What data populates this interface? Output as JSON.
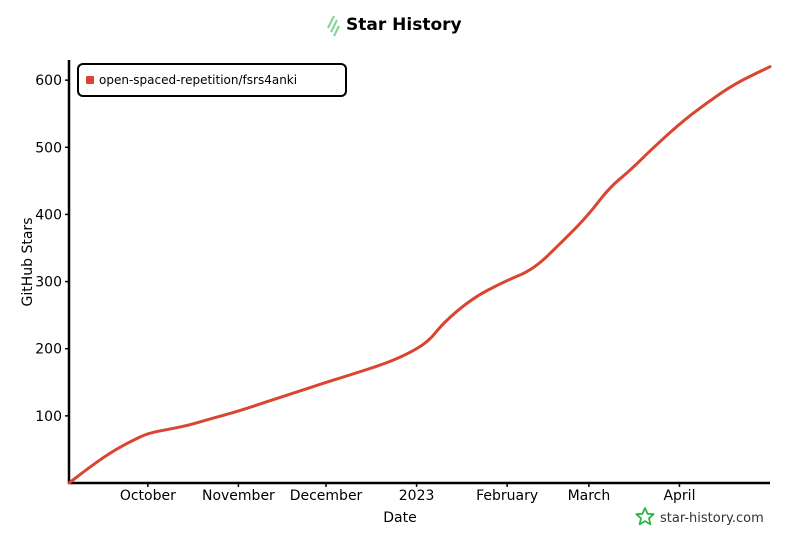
{
  "header": {
    "title": "Star History",
    "logo_icon": "star-history-logo-icon"
  },
  "watermark": {
    "text": "star-history.com",
    "icon": "star-icon",
    "icon_color": "#2fb54a"
  },
  "chart_data": {
    "type": "line",
    "title": "Star History",
    "xlabel": "Date",
    "ylabel": "GitHub Stars",
    "x_ticks": [
      "October",
      "November",
      "December",
      "2023",
      "February",
      "March",
      "April"
    ],
    "y_ticks": [
      100,
      200,
      300,
      400,
      500,
      600
    ],
    "xlim": [
      "2022-09-04",
      "2023-05-02"
    ],
    "ylim": [
      0,
      630
    ],
    "legend_position": "top-left",
    "series": [
      {
        "name": "open-spaced-repetition/fsrs4anki",
        "color": "#d94530",
        "x": [
          "2022-09-04",
          "2022-09-10",
          "2022-09-18",
          "2022-09-26",
          "2022-10-01",
          "2022-10-08",
          "2022-10-15",
          "2022-10-22",
          "2022-11-01",
          "2022-11-10",
          "2022-11-20",
          "2022-12-01",
          "2022-12-10",
          "2022-12-20",
          "2022-12-28",
          "2023-01-05",
          "2023-01-10",
          "2023-01-20",
          "2023-01-31",
          "2023-02-10",
          "2023-02-20",
          "2023-03-01",
          "2023-03-08",
          "2023-03-15",
          "2023-03-22",
          "2023-04-01",
          "2023-04-10",
          "2023-04-20",
          "2023-05-02"
        ],
        "values": [
          0,
          20,
          45,
          64,
          74,
          80,
          86,
          95,
          107,
          120,
          134,
          150,
          162,
          176,
          190,
          210,
          238,
          275,
          300,
          318,
          360,
          400,
          440,
          465,
          495,
          535,
          565,
          595,
          620
        ]
      }
    ]
  }
}
